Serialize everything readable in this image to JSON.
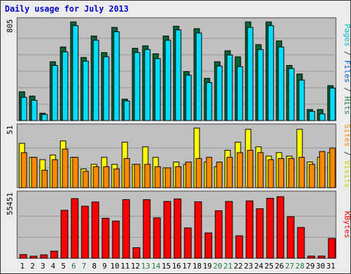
{
  "title": "Daily usage for July 2013",
  "colors": {
    "hits": "#006633",
    "files": "#00ddff",
    "sites": "#ff8800",
    "visits": "#ffff00",
    "kbytes": "#ff0000",
    "panel": "#c0c0c0",
    "weekend": "#227744",
    "weekday": "#000000"
  },
  "chart_data": {
    "type": "bar",
    "categories": [
      "1",
      "2",
      "3",
      "4",
      "5",
      "6",
      "7",
      "8",
      "9",
      "10",
      "11",
      "12",
      "13",
      "14",
      "15",
      "16",
      "17",
      "18",
      "19",
      "20",
      "21",
      "22",
      "23",
      "24",
      "25",
      "26",
      "27",
      "28",
      "29",
      "30",
      "31"
    ],
    "weekend_days": [
      "6",
      "7",
      "13",
      "14",
      "20",
      "21",
      "27",
      "28"
    ],
    "panels": [
      {
        "name": "hits-files",
        "max_label": "805",
        "ymax": 805,
        "legend": [
          {
            "text": "Pages",
            "color": "#00bbcc"
          },
          {
            "text": " / ",
            "color": "#333333"
          },
          {
            "text": "Files",
            "color": "#0055cc"
          },
          {
            "text": " / ",
            "color": "#333333"
          },
          {
            "text": "Hits",
            "color": "#227744"
          }
        ],
        "series": [
          {
            "key": "hits",
            "values": [
              235,
              200,
              60,
              480,
              600,
              805,
              515,
              690,
              555,
              760,
              175,
              590,
              610,
              545,
              690,
              770,
              400,
              750,
              345,
              480,
              570,
              520,
              805,
              620,
              805,
              650,
              450,
              380,
              90,
              90,
              285
            ]
          },
          {
            "key": "files",
            "values": [
              190,
              165,
              50,
              450,
              560,
              775,
              485,
              655,
              520,
              725,
              160,
              555,
              580,
              505,
              655,
              740,
              370,
              715,
              310,
              445,
              535,
              440,
              760,
              580,
              775,
              600,
              425,
              330,
              75,
              55,
              265
            ]
          }
        ]
      },
      {
        "name": "visits-sites",
        "max_label": "51",
        "ymax": 51,
        "legend": [
          {
            "text": "Sites",
            "color": "#ff8800"
          },
          {
            "text": " / ",
            "color": "#333333"
          },
          {
            "text": "Visits",
            "color": "#cccc00"
          }
        ],
        "series": [
          {
            "key": "visits",
            "values": [
              38,
              26,
              24,
              28,
              40,
              26,
              16,
              20,
              26,
              20,
              39,
              20,
              35,
              26,
              17,
              22,
              20,
              51,
              22,
              18,
              32,
              39,
              50,
              35,
              27,
              30,
              27,
              50,
              22,
              26,
              30
            ]
          },
          {
            "key": "sites",
            "values": [
              30,
              26,
              15,
              24,
              33,
              26,
              14,
              18,
              18,
              16,
              25,
              20,
              20,
              18,
              17,
              18,
              22,
              25,
              26,
              22,
              26,
              30,
              32,
              30,
              24,
              25,
              25,
              26,
              20,
              31,
              34
            ]
          }
        ]
      },
      {
        "name": "kbytes",
        "max_label": "55451",
        "ymax": 55451,
        "legend": [
          {
            "text": "KBytes",
            "color": "#ff0000"
          }
        ],
        "series": [
          {
            "key": "kbytes",
            "values": [
              3200,
              1800,
              3000,
              6300,
              42200,
              52500,
              45800,
              49500,
              35200,
              32700,
              51600,
              9300,
              51600,
              35600,
              50000,
              52200,
              26700,
              49700,
              22300,
              41800,
              50000,
              19800,
              50500,
              43600,
              52800,
              54200,
              36600,
              27100,
              1900,
              1900,
              17500
            ]
          }
        ]
      }
    ]
  }
}
